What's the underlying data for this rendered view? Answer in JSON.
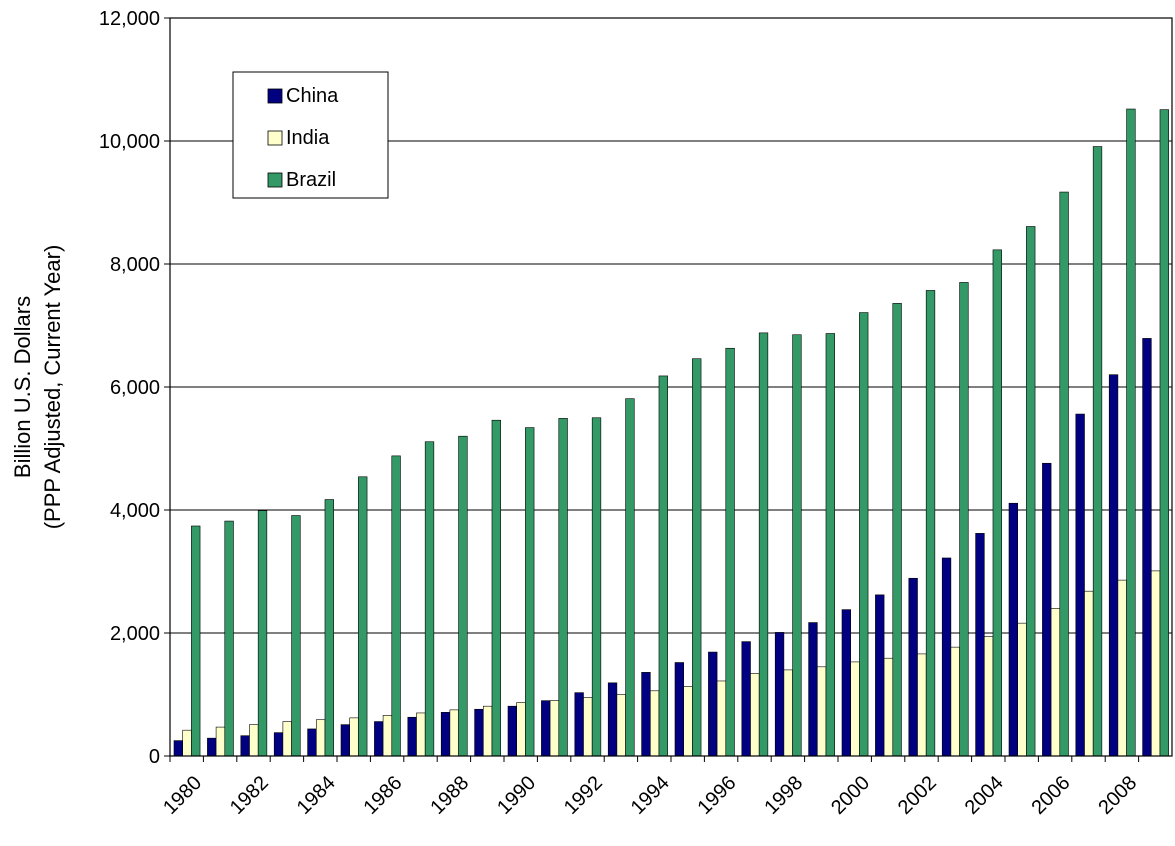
{
  "chart_data": {
    "type": "bar",
    "y_label": [
      "Billion U.S. Dollars",
      "(PPP Adjusted, Current Year)"
    ],
    "categories": [
      "1980",
      null,
      "1982",
      null,
      "1984",
      null,
      "1986",
      null,
      "1988",
      null,
      "1990",
      null,
      "1992",
      null,
      "1994",
      null,
      "1996",
      null,
      "1998",
      null,
      "2000",
      null,
      "2002",
      null,
      "2004",
      null,
      "2006",
      null,
      "2008",
      null
    ],
    "series": [
      {
        "name": "China",
        "color": "#000080",
        "values": [
          250,
          290,
          330,
          380,
          440,
          510,
          560,
          630,
          710,
          760,
          810,
          900,
          1030,
          1190,
          1360,
          1520,
          1690,
          1860,
          2010,
          2170,
          2380,
          2620,
          2890,
          3220,
          3620,
          4110,
          4760,
          5560,
          6200,
          6790
        ]
      },
      {
        "name": "India",
        "color": "#ffffcc",
        "values": [
          420,
          470,
          510,
          560,
          590,
          620,
          660,
          700,
          750,
          810,
          870,
          900,
          950,
          1000,
          1060,
          1130,
          1220,
          1340,
          1400,
          1450,
          1530,
          1590,
          1660,
          1770,
          1940,
          2160,
          2400,
          2680,
          2860,
          3010
        ]
      },
      {
        "name": "Brazil",
        "color": "#339966",
        "values": [
          3740,
          3820,
          3990,
          3910,
          4170,
          4540,
          4880,
          5110,
          5200,
          5460,
          5340,
          5490,
          5500,
          5810,
          6180,
          6460,
          6630,
          6880,
          6850,
          6870,
          7210,
          7360,
          7570,
          7700,
          8230,
          8610,
          9170,
          9910,
          10520,
          10510
        ]
      }
    ],
    "ylim": [
      0,
      12000
    ],
    "yticks": [
      0,
      {
        "value": 2000,
        "label": "2,000"
      },
      {
        "value": 4000,
        "label": "4,000"
      },
      {
        "value": 6000,
        "label": "6,000"
      },
      {
        "value": 8000,
        "label": "8,000"
      },
      {
        "value": 10000,
        "label": "10,000"
      },
      {
        "value": 12000,
        "label": "12,000"
      }
    ],
    "grid": true,
    "legend": "upper left"
  }
}
